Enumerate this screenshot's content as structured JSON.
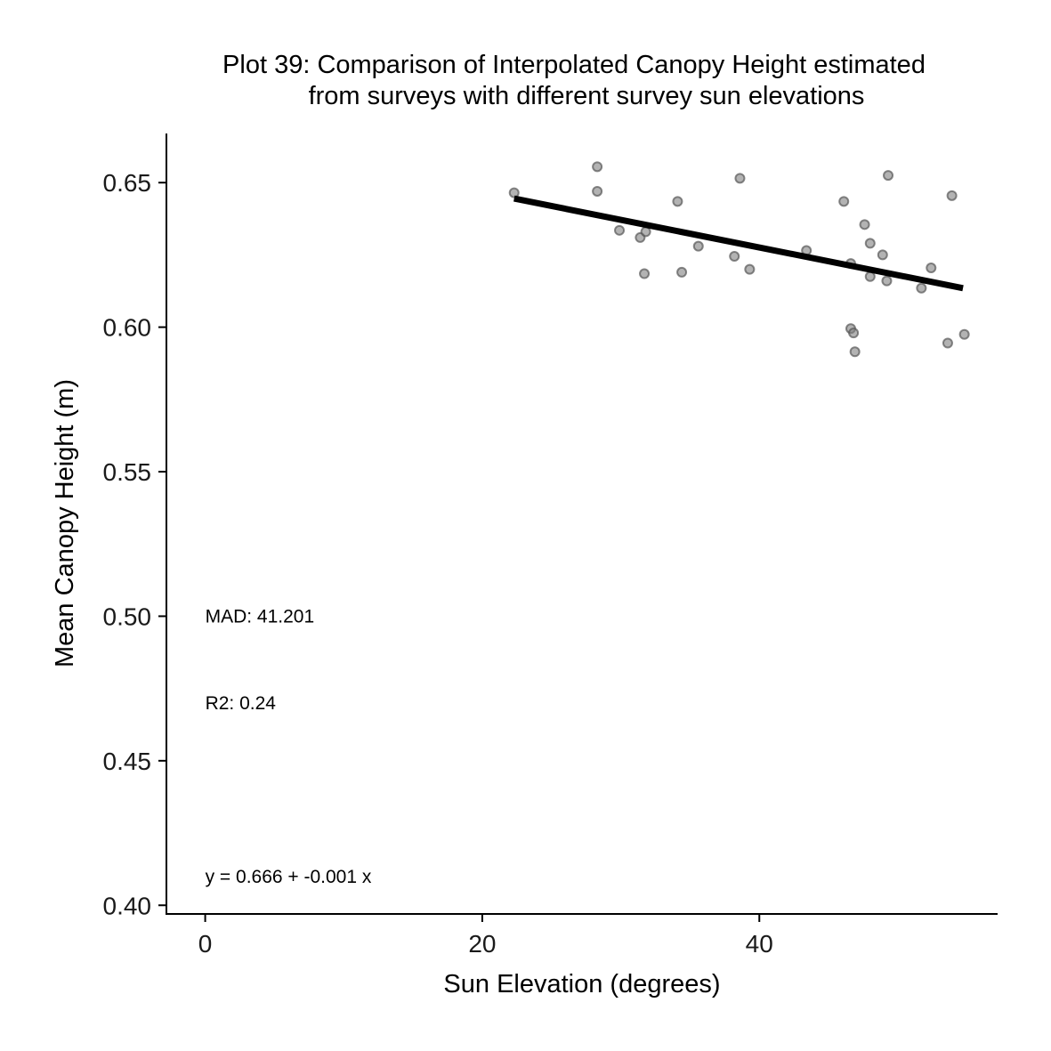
{
  "chart_data": {
    "type": "scatter",
    "title_lines": [
      "Plot 39: Comparison of Interpolated Canopy Height estimated",
      "from surveys with different survey sun elevations"
    ],
    "xlabel": "Sun Elevation (degrees)",
    "ylabel": "Mean Canopy Height (m)",
    "xlim": [
      -2.8,
      57.2
    ],
    "ylim": [
      0.397,
      0.667
    ],
    "x_ticks": [
      0,
      20,
      40
    ],
    "x_tick_labels": [
      "0",
      "20",
      "40"
    ],
    "y_ticks": [
      0.4,
      0.45,
      0.5,
      0.55,
      0.6,
      0.65
    ],
    "y_tick_labels": [
      "0.40",
      "0.45",
      "0.50",
      "0.55",
      "0.60",
      "0.65"
    ],
    "grid": false,
    "point_color": "#808080",
    "line_color": "#000000",
    "points": [
      {
        "x": 22.3,
        "y": 0.6465
      },
      {
        "x": 28.3,
        "y": 0.6555
      },
      {
        "x": 28.3,
        "y": 0.647
      },
      {
        "x": 29.9,
        "y": 0.6335
      },
      {
        "x": 31.4,
        "y": 0.631
      },
      {
        "x": 31.8,
        "y": 0.633
      },
      {
        "x": 31.7,
        "y": 0.6185
      },
      {
        "x": 34.1,
        "y": 0.6435
      },
      {
        "x": 34.4,
        "y": 0.619
      },
      {
        "x": 35.6,
        "y": 0.628
      },
      {
        "x": 38.2,
        "y": 0.6245
      },
      {
        "x": 38.6,
        "y": 0.6515
      },
      {
        "x": 39.3,
        "y": 0.62
      },
      {
        "x": 43.4,
        "y": 0.6265
      },
      {
        "x": 46.1,
        "y": 0.6435
      },
      {
        "x": 46.6,
        "y": 0.622
      },
      {
        "x": 46.6,
        "y": 0.5995
      },
      {
        "x": 46.8,
        "y": 0.598
      },
      {
        "x": 46.9,
        "y": 0.5915
      },
      {
        "x": 47.6,
        "y": 0.6355
      },
      {
        "x": 48.0,
        "y": 0.629
      },
      {
        "x": 48.0,
        "y": 0.6175
      },
      {
        "x": 48.9,
        "y": 0.625
      },
      {
        "x": 49.2,
        "y": 0.616
      },
      {
        "x": 49.3,
        "y": 0.6525
      },
      {
        "x": 51.7,
        "y": 0.6135
      },
      {
        "x": 52.4,
        "y": 0.6205
      },
      {
        "x": 53.6,
        "y": 0.5945
      },
      {
        "x": 53.9,
        "y": 0.6455
      },
      {
        "x": 54.8,
        "y": 0.5975
      }
    ],
    "fit_line": {
      "x": [
        22.3,
        54.7
      ],
      "y": [
        0.6445,
        0.6135
      ]
    },
    "annotations": [
      {
        "text": "MAD: 41.201",
        "x": 0,
        "y": 0.5
      },
      {
        "text": "R2: 0.24",
        "x": 0,
        "y": 0.47
      },
      {
        "text": "y =  0.666 + -0.001 x",
        "x": 0,
        "y": 0.41
      }
    ]
  }
}
